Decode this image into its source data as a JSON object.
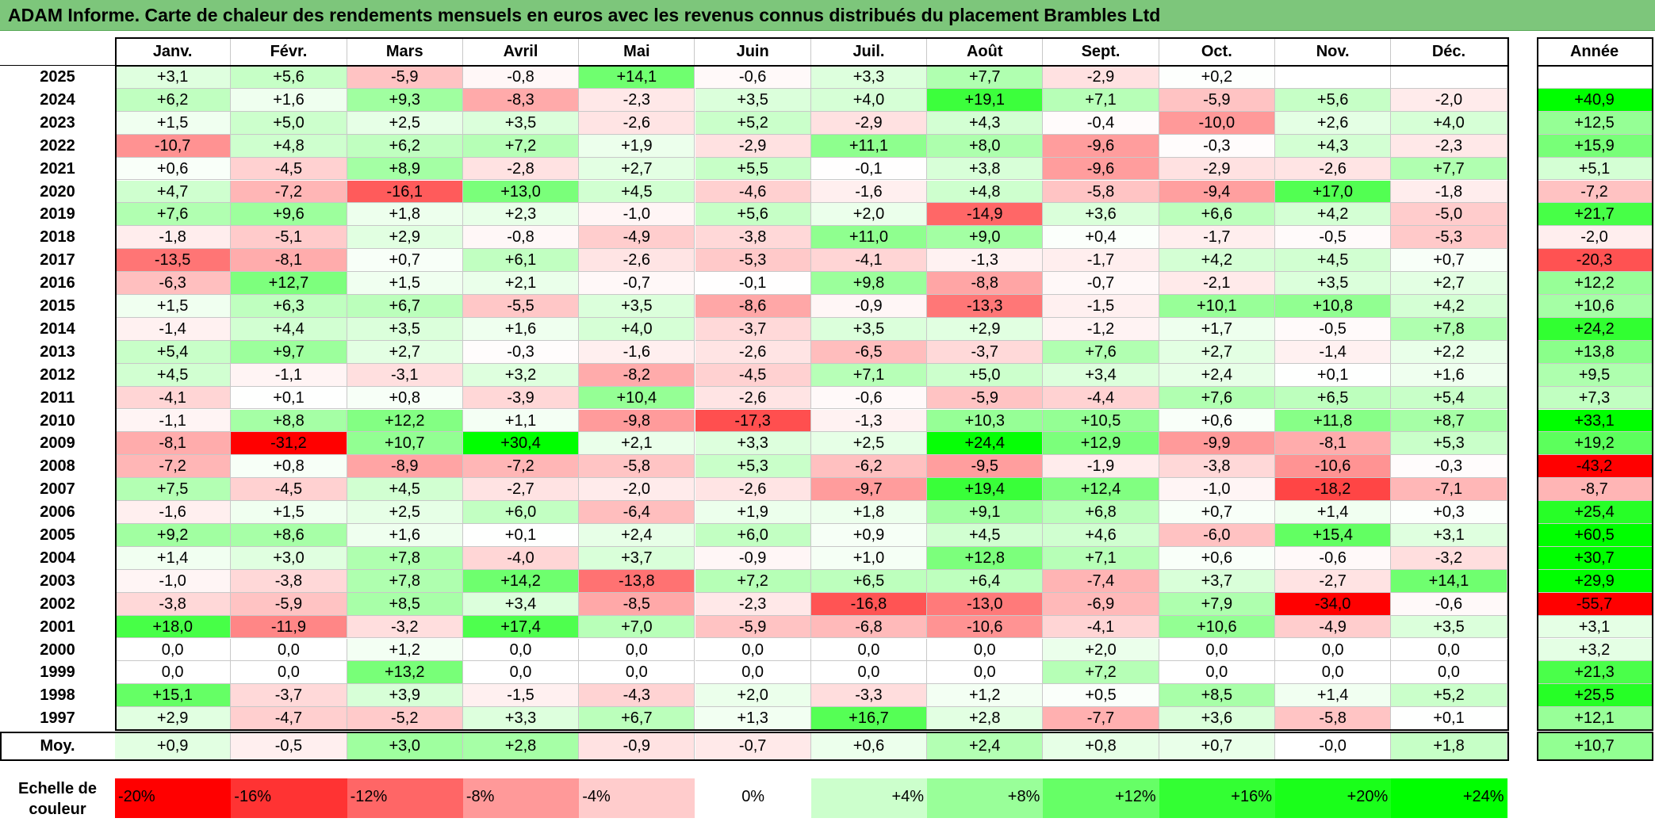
{
  "title": "ADAM Informe. Carte de chaleur des rendements mensuels en euros avec les revenus connus distribués du placement Brambles Ltd",
  "months": [
    "Janv.",
    "Févr.",
    "Mars",
    "Avril",
    "Mai",
    "Juin",
    "Juil.",
    "Août",
    "Sept.",
    "Oct.",
    "Nov.",
    "Déc."
  ],
  "year_header": "Année",
  "avg_label": "Moy.",
  "scale_label": "Echelle de couleur",
  "scale": [
    {
      "label": "-20%",
      "color": "#ff0000",
      "align": "left"
    },
    {
      "label": "-16%",
      "color": "#ff3333",
      "align": "left"
    },
    {
      "label": "-12%",
      "color": "#ff6666",
      "align": "left"
    },
    {
      "label": "-8%",
      "color": "#ff9999",
      "align": "left"
    },
    {
      "label": "-4%",
      "color": "#ffcccc",
      "align": "left"
    },
    {
      "label": "0%",
      "color": "#ffffff",
      "align": "center"
    },
    {
      "label": "+4%",
      "color": "#ccffcc",
      "align": "right"
    },
    {
      "label": "+8%",
      "color": "#99ff99",
      "align": "right"
    },
    {
      "label": "+12%",
      "color": "#66ff66",
      "align": "right"
    },
    {
      "label": "+16%",
      "color": "#33ff33",
      "align": "right"
    },
    {
      "label": "+20%",
      "color": "#1aff1a",
      "align": "right"
    },
    {
      "label": "+24%",
      "color": "#00ff00",
      "align": "right"
    }
  ],
  "chart_data": {
    "type": "heatmap",
    "title": "ADAM Informe. Carte de chaleur des rendements mensuels en euros avec les revenus connus distribués du placement Brambles Ltd",
    "x": [
      "Janv.",
      "Févr.",
      "Mars",
      "Avril",
      "Mai",
      "Juin",
      "Juil.",
      "Août",
      "Sept.",
      "Oct.",
      "Nov.",
      "Déc."
    ],
    "rows": [
      {
        "year": "2025",
        "values": [
          "+3,1",
          "+5,6",
          "-5,9",
          "-0,8",
          "+14,1",
          "-0,6",
          "+3,3",
          "+7,7",
          "-2,9",
          "+0,2",
          "",
          ""
        ],
        "annual": ""
      },
      {
        "year": "2024",
        "values": [
          "+6,2",
          "+1,6",
          "+9,3",
          "-8,3",
          "-2,3",
          "+3,5",
          "+4,0",
          "+19,1",
          "+7,1",
          "-5,9",
          "+5,6",
          "-2,0"
        ],
        "annual": "+40,9"
      },
      {
        "year": "2023",
        "values": [
          "+1,5",
          "+5,0",
          "+2,5",
          "+3,5",
          "-2,6",
          "+5,2",
          "-2,9",
          "+4,3",
          "-0,4",
          "-10,0",
          "+2,6",
          "+4,0"
        ],
        "annual": "+12,5"
      },
      {
        "year": "2022",
        "values": [
          "-10,7",
          "+4,8",
          "+6,2",
          "+7,2",
          "+1,9",
          "-2,9",
          "+11,1",
          "+8,0",
          "-9,6",
          "-0,3",
          "+4,3",
          "-2,3"
        ],
        "annual": "+15,9"
      },
      {
        "year": "2021",
        "values": [
          "+0,6",
          "-4,5",
          "+8,9",
          "-2,8",
          "+2,7",
          "+5,5",
          "-0,1",
          "+3,8",
          "-9,6",
          "-2,9",
          "-2,6",
          "+7,7"
        ],
        "annual": "+5,1"
      },
      {
        "year": "2020",
        "values": [
          "+4,7",
          "-7,2",
          "-16,1",
          "+13,0",
          "+4,5",
          "-4,6",
          "-1,6",
          "+4,8",
          "-5,8",
          "-9,4",
          "+17,0",
          "-1,8"
        ],
        "annual": "-7,2"
      },
      {
        "year": "2019",
        "values": [
          "+7,6",
          "+9,6",
          "+1,8",
          "+2,3",
          "-1,0",
          "+5,6",
          "+2,0",
          "-14,9",
          "+3,6",
          "+6,6",
          "+4,2",
          "-5,0"
        ],
        "annual": "+21,7"
      },
      {
        "year": "2018",
        "values": [
          "-1,8",
          "-5,1",
          "+2,9",
          "-0,8",
          "-4,9",
          "-3,8",
          "+11,0",
          "+9,0",
          "+0,4",
          "-1,7",
          "-0,5",
          "-5,3"
        ],
        "annual": "-2,0"
      },
      {
        "year": "2017",
        "values": [
          "-13,5",
          "-8,1",
          "+0,7",
          "+6,1",
          "-2,6",
          "-5,3",
          "-4,1",
          "-1,3",
          "-1,7",
          "+4,2",
          "+4,5",
          "+0,7"
        ],
        "annual": "-20,3"
      },
      {
        "year": "2016",
        "values": [
          "-6,3",
          "+12,7",
          "+1,5",
          "+2,1",
          "-0,7",
          "-0,1",
          "+9,8",
          "-8,8",
          "-0,7",
          "-2,1",
          "+3,5",
          "+2,7"
        ],
        "annual": "+12,2"
      },
      {
        "year": "2015",
        "values": [
          "+1,5",
          "+6,3",
          "+6,7",
          "-5,5",
          "+3,5",
          "-8,6",
          "-0,9",
          "-13,3",
          "-1,5",
          "+10,1",
          "+10,8",
          "+4,2"
        ],
        "annual": "+10,6"
      },
      {
        "year": "2014",
        "values": [
          "-1,4",
          "+4,4",
          "+3,5",
          "+1,6",
          "+4,0",
          "-3,7",
          "+3,5",
          "+2,9",
          "-1,2",
          "+1,7",
          "-0,5",
          "+7,8"
        ],
        "annual": "+24,2"
      },
      {
        "year": "2013",
        "values": [
          "+5,4",
          "+9,7",
          "+2,7",
          "-0,3",
          "-1,6",
          "-2,6",
          "-6,5",
          "-3,7",
          "+7,6",
          "+2,7",
          "-1,4",
          "+2,2"
        ],
        "annual": "+13,8"
      },
      {
        "year": "2012",
        "values": [
          "+4,5",
          "-1,1",
          "-3,1",
          "+3,2",
          "-8,2",
          "-4,5",
          "+7,1",
          "+5,0",
          "+3,4",
          "+2,4",
          "+0,1",
          "+1,6"
        ],
        "annual": "+9,5"
      },
      {
        "year": "2011",
        "values": [
          "-4,1",
          "+0,1",
          "+0,8",
          "-3,9",
          "+10,4",
          "-2,6",
          "-0,6",
          "-5,9",
          "-4,4",
          "+7,6",
          "+6,5",
          "+5,4"
        ],
        "annual": "+7,3"
      },
      {
        "year": "2010",
        "values": [
          "-1,1",
          "+8,8",
          "+12,2",
          "+1,1",
          "-9,8",
          "-17,3",
          "-1,3",
          "+10,3",
          "+10,5",
          "+0,6",
          "+11,8",
          "+8,7"
        ],
        "annual": "+33,1"
      },
      {
        "year": "2009",
        "values": [
          "-8,1",
          "-31,2",
          "+10,7",
          "+30,4",
          "+2,1",
          "+3,3",
          "+2,5",
          "+24,4",
          "+12,9",
          "-9,9",
          "-8,1",
          "+5,3"
        ],
        "annual": "+19,2"
      },
      {
        "year": "2008",
        "values": [
          "-7,2",
          "+0,8",
          "-8,9",
          "-7,2",
          "-5,8",
          "+5,3",
          "-6,2",
          "-9,5",
          "-1,9",
          "-3,8",
          "-10,6",
          "-0,3"
        ],
        "annual": "-43,2"
      },
      {
        "year": "2007",
        "values": [
          "+7,5",
          "-4,5",
          "+4,5",
          "-2,7",
          "-2,0",
          "-2,6",
          "-9,7",
          "+19,4",
          "+12,4",
          "-1,0",
          "-18,2",
          "-7,1"
        ],
        "annual": "-8,7"
      },
      {
        "year": "2006",
        "values": [
          "-1,6",
          "+1,5",
          "+2,5",
          "+6,0",
          "-6,4",
          "+1,9",
          "+1,8",
          "+9,1",
          "+6,8",
          "+0,7",
          "+1,4",
          "+0,3"
        ],
        "annual": "+25,4"
      },
      {
        "year": "2005",
        "values": [
          "+9,2",
          "+8,6",
          "+1,6",
          "+0,1",
          "+2,4",
          "+6,0",
          "+0,9",
          "+4,5",
          "+4,6",
          "-6,0",
          "+15,4",
          "+3,1"
        ],
        "annual": "+60,5"
      },
      {
        "year": "2004",
        "values": [
          "+1,4",
          "+3,0",
          "+7,8",
          "-4,0",
          "+3,7",
          "-0,9",
          "+1,0",
          "+12,8",
          "+7,1",
          "+0,6",
          "-0,6",
          "-3,2"
        ],
        "annual": "+30,7"
      },
      {
        "year": "2003",
        "values": [
          "-1,0",
          "-3,8",
          "+7,8",
          "+14,2",
          "-13,8",
          "+7,2",
          "+6,5",
          "+6,4",
          "-7,4",
          "+3,7",
          "-2,7",
          "+14,1"
        ],
        "annual": "+29,9"
      },
      {
        "year": "2002",
        "values": [
          "-3,8",
          "-5,9",
          "+8,5",
          "+3,4",
          "-8,5",
          "-2,3",
          "-16,8",
          "-13,0",
          "-6,9",
          "+7,9",
          "-34,0",
          "-0,6"
        ],
        "annual": "-55,7"
      },
      {
        "year": "2001",
        "values": [
          "+18,0",
          "-11,9",
          "-3,2",
          "+17,4",
          "+7,0",
          "-5,9",
          "-6,8",
          "-10,6",
          "-4,1",
          "+10,6",
          "-4,9",
          "+3,5"
        ],
        "annual": "+3,1"
      },
      {
        "year": "2000",
        "values": [
          "0,0",
          "0,0",
          "+1,2",
          "0,0",
          "0,0",
          "0,0",
          "0,0",
          "0,0",
          "+2,0",
          "0,0",
          "0,0",
          "0,0"
        ],
        "annual": "+3,2"
      },
      {
        "year": "1999",
        "values": [
          "0,0",
          "0,0",
          "+13,2",
          "0,0",
          "0,0",
          "0,0",
          "0,0",
          "0,0",
          "+7,2",
          "0,0",
          "0,0",
          "0,0"
        ],
        "annual": "+21,3"
      },
      {
        "year": "1998",
        "values": [
          "+15,1",
          "-3,7",
          "+3,9",
          "-1,5",
          "-4,3",
          "+2,0",
          "-3,3",
          "+1,2",
          "+0,5",
          "+8,5",
          "+1,4",
          "+5,2"
        ],
        "annual": "+25,5"
      },
      {
        "year": "1997",
        "values": [
          "+2,9",
          "-4,7",
          "-5,2",
          "+3,3",
          "+6,7",
          "+1,3",
          "+16,7",
          "+2,8",
          "-7,7",
          "+3,6",
          "-5,8",
          "+0,1"
        ],
        "annual": "+12,1"
      }
    ],
    "average": {
      "values": [
        "+0,9",
        "-0,5",
        "+3,0",
        "+2,8",
        "-0,9",
        "-0,7",
        "+0,6",
        "+2,4",
        "+0,8",
        "+0,7",
        "-0,0",
        "+1,8"
      ],
      "annual": "+10,7"
    }
  }
}
